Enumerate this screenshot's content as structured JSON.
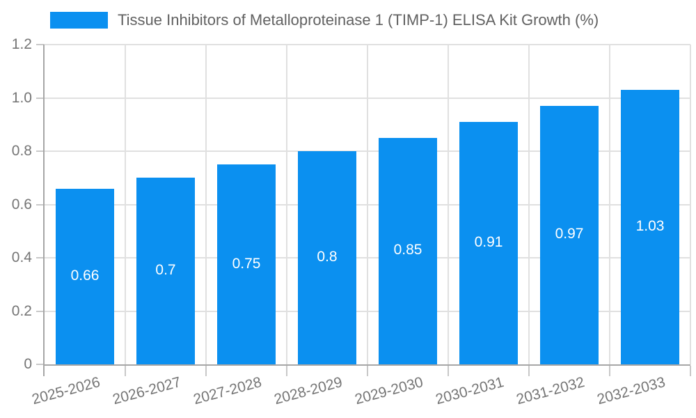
{
  "chart_data": {
    "type": "bar",
    "title": "",
    "legend": {
      "label": "Tissue Inhibitors of Metalloproteinase 1 (TIMP-1) ELISA Kit Growth (%)",
      "position": "top-left"
    },
    "categories": [
      "2025-2026",
      "2026-2027",
      "2027-2028",
      "2028-2029",
      "2029-2030",
      "2030-2031",
      "2031-2032",
      "2032-2033"
    ],
    "series": [
      {
        "name": "Tissue Inhibitors of Metalloproteinase 1 (TIMP-1) ELISA Kit Growth (%)",
        "values": [
          0.66,
          0.7,
          0.75,
          0.8,
          0.85,
          0.91,
          0.97,
          1.03
        ]
      }
    ],
    "value_labels": [
      "0.66",
      "0.7",
      "0.75",
      "0.8",
      "0.85",
      "0.91",
      "0.97",
      "1.03"
    ],
    "xlabel": "",
    "ylabel": "",
    "ylim": [
      0,
      1.2
    ],
    "yticks": [
      "0",
      "0.2",
      "0.4",
      "0.6",
      "0.8",
      "1.0",
      "1.2"
    ],
    "grid": true,
    "x_label_rotation_deg": -15,
    "colors": {
      "bar": "#0b90f0",
      "bar_label": "#ffffff",
      "axis_line": "#a6a6a6",
      "gridline": "#e0e0e0",
      "tick_mark": "#c8c8c8",
      "tick_label": "#757575",
      "legend_text": "#616161",
      "background": "#ffffff"
    }
  }
}
